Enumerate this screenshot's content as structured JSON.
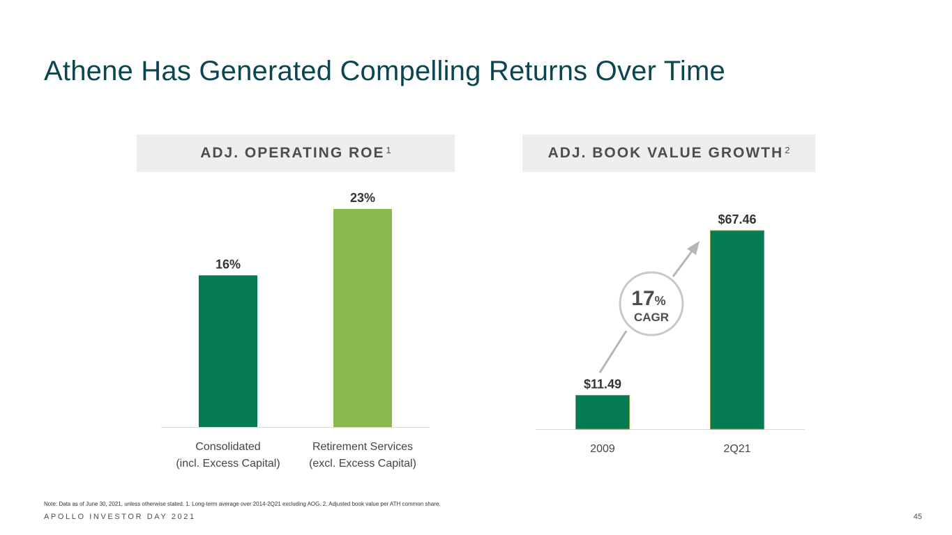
{
  "title": "Athene Has Generated Compelling Returns Over Time",
  "panels": {
    "roe": {
      "header": "ADJ. OPERATING ROE",
      "footnote_ref": "1"
    },
    "bv": {
      "header": "ADJ. BOOK VALUE GROWTH",
      "footnote_ref": "2"
    }
  },
  "chart_data": [
    {
      "type": "bar",
      "title": "ADJ. OPERATING ROE",
      "categories": [
        [
          "Consolidated",
          "(incl. Excess Capital)"
        ],
        [
          "Retirement Services",
          "(excl. Excess Capital)"
        ]
      ],
      "values": [
        16,
        23
      ],
      "data_labels": [
        "16%",
        "23%"
      ],
      "colors": [
        "#047b52",
        "#8aba4e"
      ],
      "ylim": [
        0,
        23
      ]
    },
    {
      "type": "bar",
      "title": "ADJ. BOOK VALUE GROWTH",
      "categories": [
        [
          "2009"
        ],
        [
          "2Q21"
        ]
      ],
      "values": [
        11.49,
        67.46
      ],
      "data_labels": [
        "$11.49",
        "$67.46"
      ],
      "colors": [
        "#047b52",
        "#047b52"
      ],
      "ylim": [
        0,
        67.46
      ],
      "annotation": {
        "value": "17",
        "unit": "%",
        "label": "CAGR"
      }
    }
  ],
  "footnote": "Note: Data as of June 30, 2021, unless otherwise stated. 1. Long-term average over 2014-2Q21 excluding AOG. 2. Adjusted book value per ATH common share.",
  "footer": "APOLLO INVESTOR DAY 2021",
  "page_number": "45",
  "colors": {
    "title": "#0b4650",
    "dark_green": "#047b52",
    "light_green": "#8aba4e",
    "header_bg": "#efeeec",
    "arrow": "#b5b5b5"
  }
}
